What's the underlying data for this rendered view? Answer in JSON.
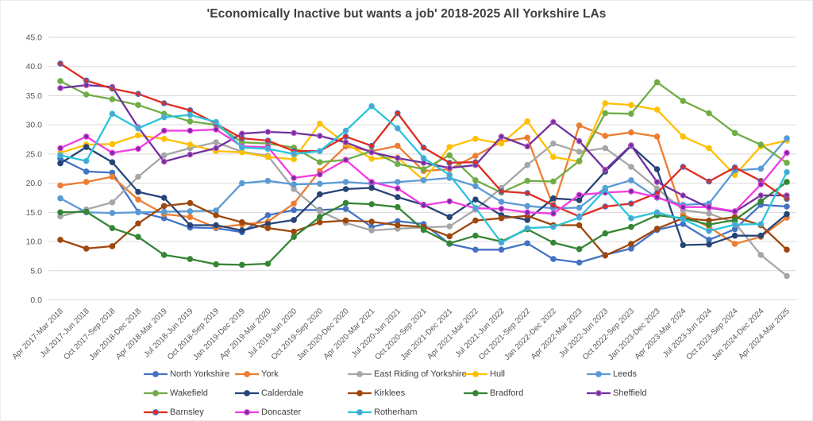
{
  "title": "'Economically Inactive but wants a job' 2018-2025 All Yorkshire LAs",
  "chart_data": {
    "type": "line",
    "title": "'Economically Inactive but wants a job' 2018-2025 All Yorkshire LAs",
    "xlabel": "",
    "ylabel": "",
    "ylim": [
      0,
      45
    ],
    "y_tick_step": 5,
    "y_tick_decimals": 1,
    "grid": "horizontal",
    "legend_position": "bottom",
    "categories": [
      "Apr 2017-Mar 2018",
      "Jul 2017-Jun 2018",
      "Oct 2017-Sep 2018",
      "Jan 2018-Dec 2018",
      "Apr 2018-Mar 2019",
      "Jul 2018-Jun 2019",
      "Oct 2018-Sep 2019",
      "Jan 2019-Dec 2019",
      "Apr 2019-Mar 2020",
      "Jul 2019-Jun 2020",
      "Oct 2019-Sep 2020",
      "Jan 2020-Dec 2020",
      "Apr 2020-Mar 2021",
      "Jul 2020-Jun 2021",
      "Oct 2020-Sep 2021",
      "Jan 2021-Dec 2021",
      "Apr 2021-Mar 2022",
      "Jul 2021-Jun 2022",
      "Oct 2021-Sep 2022",
      "Jan 2022-Dec 2022",
      "Apr 2022-Mar 2023",
      "Jul 2022-Jun 2023",
      "Oct 2022-Sep 2023",
      "Jan 2023-Dec 2023",
      "Apr 2023-Mar 2024",
      "Jul 2023-Jun 2024",
      "Oct 2023-Sep 2024",
      "Jan 2024-Dec 2024",
      "Apr 2024-Mar 2025"
    ],
    "series": [
      {
        "name": "North Yorkshire",
        "color": "#4472C4",
        "values": [
          24.2,
          22.0,
          21.8,
          15.1,
          14.0,
          12.4,
          12.3,
          11.6,
          14.5,
          15.4,
          15.4,
          15.6,
          12.5,
          13.5,
          13.0,
          9.6,
          8.6,
          8.6,
          9.7,
          7.0,
          6.4,
          7.7,
          8.8,
          12.0,
          13.0,
          10.3,
          12.1,
          16.3,
          16.0
        ]
      },
      {
        "name": "York",
        "color": "#ED7D31",
        "values": [
          19.6,
          20.2,
          21.1,
          17.2,
          14.7,
          14.2,
          12.4,
          12.9,
          13.4,
          16.5,
          22.1,
          26.3,
          25.5,
          26.4,
          22.1,
          22.4,
          24.7,
          27.1,
          27.8,
          16.0,
          29.9,
          28.1,
          28.7,
          28.0,
          14.6,
          12.5,
          9.6,
          10.8,
          14.1
        ]
      },
      {
        "name": "East Riding of Yorkshire",
        "color": "#A6A6A6",
        "values": [
          14.3,
          15.5,
          16.7,
          21.1,
          24.8,
          26.0,
          27.0,
          25.4,
          24.7,
          19.0,
          15.2,
          13.2,
          11.9,
          12.2,
          12.4,
          12.6,
          15.5,
          19.2,
          23.1,
          26.8,
          25.4,
          26.0,
          22.8,
          19.1,
          15.4,
          14.8,
          13.2,
          7.7,
          4.1
        ]
      },
      {
        "name": "Hull",
        "color": "#FFC000",
        "values": [
          25.2,
          26.6,
          26.7,
          28.2,
          27.6,
          26.6,
          25.5,
          25.3,
          24.5,
          24.1,
          30.2,
          26.8,
          24.2,
          24.4,
          20.5,
          26.2,
          27.6,
          26.8,
          30.6,
          24.5,
          23.7,
          33.7,
          33.4,
          32.6,
          28.0,
          26.0,
          21.4,
          26.3,
          27.3
        ]
      },
      {
        "name": "Leeds",
        "color": "#5B9BD5",
        "values": [
          17.4,
          15.0,
          14.9,
          15.0,
          15.1,
          15.2,
          15.3,
          20.0,
          20.4,
          19.8,
          19.9,
          20.2,
          19.9,
          20.2,
          20.5,
          20.9,
          19.5,
          16.8,
          16.1,
          15.7,
          15.8,
          19.2,
          20.5,
          17.5,
          16.3,
          16.5,
          22.2,
          22.5,
          27.7
        ]
      },
      {
        "name": "Wakefield",
        "color": "#70AD47",
        "values": [
          37.5,
          35.2,
          34.4,
          33.4,
          31.9,
          30.6,
          30.0,
          27.0,
          26.8,
          26.1,
          23.6,
          24.0,
          25.5,
          23.3,
          22.4,
          24.8,
          20.5,
          18.4,
          20.4,
          20.3,
          23.8,
          32.0,
          31.9,
          37.3,
          34.1,
          32.0,
          28.6,
          26.6,
          23.5
        ]
      },
      {
        "name": "Calderdale",
        "color": "#264478",
        "values": [
          23.4,
          26.2,
          23.6,
          18.5,
          17.5,
          12.8,
          12.8,
          11.9,
          13.0,
          13.7,
          18.1,
          19.0,
          19.2,
          17.6,
          16.3,
          14.2,
          17.2,
          14.5,
          13.7,
          17.4,
          17.1,
          22.0,
          26.4,
          22.4,
          9.4,
          9.5,
          11.0,
          11.0,
          14.7
        ]
      },
      {
        "name": "Kirklees",
        "color": "#9E480E",
        "values": [
          10.3,
          8.8,
          9.2,
          13.1,
          16.1,
          16.6,
          14.5,
          13.3,
          12.3,
          11.7,
          13.3,
          13.6,
          13.4,
          12.8,
          12.5,
          10.9,
          13.6,
          14.0,
          14.4,
          12.8,
          12.8,
          7.6,
          9.6,
          12.2,
          14.0,
          13.6,
          14.2,
          12.8,
          8.6
        ]
      },
      {
        "name": "Bradford",
        "color": "#358535",
        "values": [
          15.0,
          15.1,
          12.3,
          10.8,
          7.7,
          7.0,
          6.1,
          6.0,
          6.2,
          10.8,
          14.2,
          16.6,
          16.4,
          15.9,
          12.0,
          9.7,
          11.0,
          10.0,
          12.1,
          9.8,
          8.7,
          11.4,
          12.5,
          14.5,
          14.0,
          12.9,
          13.7,
          16.9,
          20.2
        ]
      },
      {
        "name": "Sheffield",
        "color": "#7030A0",
        "marker_stroke": "#C55BC5",
        "values": [
          36.3,
          36.8,
          36.5,
          29.6,
          23.7,
          24.9,
          26.0,
          28.5,
          28.8,
          28.6,
          28.1,
          27.0,
          25.3,
          24.3,
          23.5,
          22.6,
          23.1,
          28.0,
          26.3,
          30.5,
          27.2,
          22.3,
          26.5,
          20.2,
          17.9,
          15.8,
          15.1,
          17.9,
          17.9
        ]
      },
      {
        "name": "Barnsley",
        "color": "#E02B20",
        "marker_stroke": "#4472C4",
        "values": [
          40.5,
          37.6,
          36.2,
          35.3,
          33.7,
          32.5,
          30.2,
          27.7,
          27.3,
          25.5,
          25.5,
          28.0,
          26.4,
          32.0,
          26.1,
          23.5,
          23.6,
          18.6,
          18.3,
          16.2,
          14.3,
          16.0,
          16.5,
          18.3,
          22.8,
          20.3,
          22.7,
          20.4,
          17.3
        ]
      },
      {
        "name": "Doncaster",
        "color": "#F23BE2",
        "marker_fill": "#7030A0",
        "values": [
          26.0,
          28.0,
          25.2,
          25.9,
          29.0,
          29.0,
          29.2,
          26.3,
          26.2,
          20.9,
          21.5,
          24.0,
          20.2,
          19.1,
          16.2,
          16.9,
          15.7,
          15.6,
          15.0,
          14.8,
          18.0,
          18.4,
          18.6,
          17.6,
          15.9,
          15.9,
          15.2,
          19.8,
          25.2
        ]
      },
      {
        "name": "Rotherham",
        "color": "#2CC3DC",
        "marker_fill": "#5B9BD5",
        "values": [
          24.8,
          23.8,
          31.9,
          29.4,
          31.3,
          31.7,
          30.5,
          26.1,
          25.9,
          25.0,
          25.5,
          29.0,
          33.2,
          29.4,
          24.3,
          21.4,
          15.8,
          9.8,
          12.3,
          12.5,
          14.1,
          18.9,
          14.0,
          15.0,
          13.8,
          11.8,
          12.9,
          13.0,
          21.9
        ]
      }
    ],
    "legend_rows": [
      [
        "North Yorkshire",
        "York",
        "East Riding of Yorkshire",
        "Hull",
        "Leeds"
      ],
      [
        "Wakefield",
        "Calderdale",
        "Kirklees",
        "Bradford",
        "Sheffield"
      ],
      [
        "Barnsley",
        "Doncaster",
        "Rotherham"
      ]
    ]
  },
  "y_axis_tick_labels": [
    "45.0",
    "40.0",
    "35.0",
    "30.0",
    "25.0",
    "20.0",
    "15.0",
    "10.0",
    "5.0",
    "0.0"
  ]
}
